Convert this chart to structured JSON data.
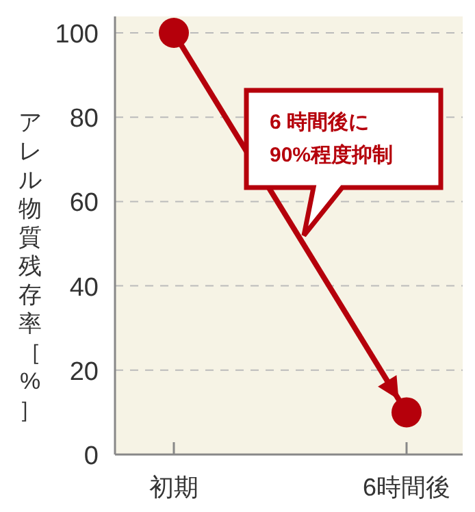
{
  "chart_data": {
    "type": "line",
    "ylabel": "アレル物質残存率［%］",
    "categories": [
      "初期",
      "6時間後"
    ],
    "series": [
      {
        "color": "#b5000b",
        "values": [
          100,
          10
        ]
      }
    ],
    "ylim": [
      0,
      100
    ],
    "yticks": [
      0,
      20,
      40,
      60,
      80,
      100
    ],
    "grid": "y",
    "marker": "circle",
    "line_style": "solid",
    "annotations": [
      "6 時間後に\n90%程度抑制"
    ]
  }
}
